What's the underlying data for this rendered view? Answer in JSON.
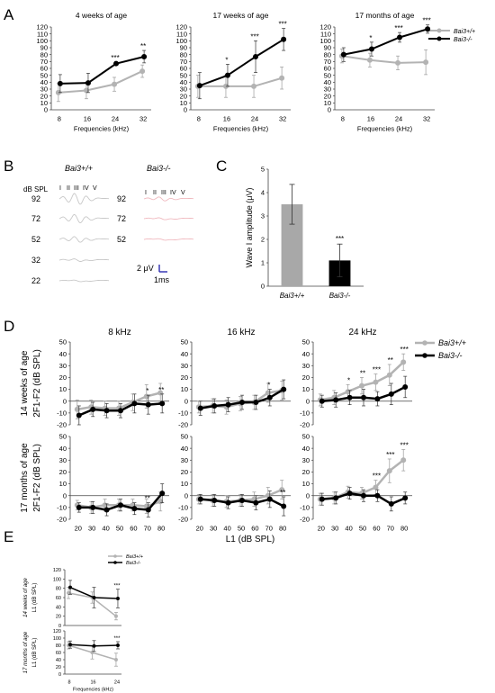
{
  "colors": {
    "wt": "#b3b3b3",
    "ko": "#000000",
    "wt_trace": "#c8c8c8",
    "ko_trace": "#f0b9bf",
    "scale": "#2b2bb0"
  },
  "chart_data": [
    {
      "id": "A1",
      "panel_letter": "A",
      "type": "line",
      "title": "4 weeks of age",
      "xlabel": "Frequencies (kHz)",
      "ylabel": "",
      "ylim": [
        0,
        120
      ],
      "yticks": [
        0,
        10,
        20,
        30,
        40,
        50,
        60,
        70,
        80,
        90,
        100,
        110,
        120
      ],
      "categories": [
        "8",
        "16",
        "24",
        "32"
      ],
      "series": [
        {
          "name": "Bai3+/+",
          "values": [
            25,
            28,
            37,
            56
          ],
          "err": [
            13,
            12,
            10,
            9
          ],
          "stars": [
            "",
            "",
            "",
            ""
          ]
        },
        {
          "name": "Bai3-/-",
          "values": [
            38,
            39,
            67,
            77
          ],
          "err": [
            13,
            14,
            2,
            9
          ],
          "stars": [
            "",
            "",
            "***",
            "**"
          ]
        }
      ]
    },
    {
      "id": "A2",
      "type": "line",
      "title": "17 weeks of age",
      "xlabel": "Frequencies (kHz)",
      "ylabel": "",
      "ylim": [
        0,
        120
      ],
      "yticks": [
        0,
        10,
        20,
        30,
        40,
        50,
        60,
        70,
        80,
        90,
        100,
        110,
        120
      ],
      "categories": [
        "8",
        "16",
        "24",
        "32"
      ],
      "series": [
        {
          "name": "Bai3+/+",
          "values": [
            34,
            34,
            34,
            46
          ],
          "err": [
            16,
            16,
            16,
            16
          ],
          "stars": [
            "",
            "",
            "",
            ""
          ]
        },
        {
          "name": "Bai3-/-",
          "values": [
            35,
            50,
            77,
            102
          ],
          "err": [
            19,
            16,
            23,
            16
          ],
          "stars": [
            "",
            "*",
            "***",
            "***"
          ]
        }
      ]
    },
    {
      "id": "A3",
      "type": "line",
      "title": "17 months of age",
      "xlabel": "Frequencies (kHz)",
      "ylabel": "",
      "ylim": [
        0,
        120
      ],
      "yticks": [
        0,
        10,
        20,
        30,
        40,
        50,
        60,
        70,
        80,
        90,
        100,
        110,
        120
      ],
      "categories": [
        "8",
        "16",
        "24",
        "32"
      ],
      "legend_pos": "top-right",
      "series": [
        {
          "name": "Bai3+/+",
          "values": [
            78,
            72,
            68,
            69
          ],
          "err": [
            10,
            10,
            10,
            18
          ],
          "stars": [
            "",
            "",
            "",
            ""
          ]
        },
        {
          "name": "Bai3-/-",
          "values": [
            80,
            88,
            105,
            117
          ],
          "err": [
            10,
            10,
            7,
            6
          ],
          "stars": [
            "",
            "*",
            "***",
            "***"
          ]
        }
      ]
    },
    {
      "id": "C",
      "panel_letter": "C",
      "type": "bar",
      "ylabel": "Wave I amplitude (μV)",
      "ylim": [
        0,
        5
      ],
      "yticks": [
        0,
        1,
        2,
        3,
        4,
        5
      ],
      "categories": [
        "Bai3+/+",
        "Bai3-/-"
      ],
      "values": [
        3.5,
        1.1
      ],
      "err": [
        0.85,
        0.7
      ],
      "stars": [
        "",
        "***"
      ]
    },
    {
      "id": "D1",
      "panel_letter": "D",
      "type": "line",
      "title": "8 kHz",
      "row_label": "14 weeks of age",
      "ylabel": "2F1-F2 (dB SPL)",
      "ylim": [
        -20,
        50
      ],
      "yticks": [
        -20,
        -10,
        0,
        10,
        20,
        30,
        40,
        50
      ],
      "x": [
        20,
        30,
        40,
        50,
        60,
        70,
        80
      ],
      "show_xticks": false,
      "series": [
        {
          "name": "Bai3+/+",
          "values": [
            -7,
            -5,
            -6,
            -6,
            -1,
            4,
            7
          ],
          "err": [
            8,
            6,
            6,
            6,
            7,
            10,
            8
          ],
          "stars": [
            "",
            "",
            "",
            "",
            "",
            "",
            ""
          ]
        },
        {
          "name": "Bai3-/-",
          "values": [
            -12,
            -7,
            -8,
            -8,
            -2,
            -3,
            -2
          ],
          "err": [
            8,
            6,
            6,
            6,
            8,
            8,
            8
          ],
          "stars": [
            "",
            "",
            "",
            "",
            "",
            "*",
            "**"
          ]
        }
      ]
    },
    {
      "id": "D2",
      "type": "line",
      "title": "16 kHz",
      "ylabel": "",
      "ylim": [
        -20,
        50
      ],
      "yticks": [
        -20,
        -10,
        0,
        10,
        20,
        30,
        40,
        50
      ],
      "x": [
        20,
        30,
        40,
        50,
        60,
        70,
        80
      ],
      "show_xticks": false,
      "series": [
        {
          "name": "Bai3+/+",
          "values": [
            -5,
            -4,
            -5,
            -2,
            -1,
            7,
            9
          ],
          "err": [
            5,
            6,
            6,
            6,
            6,
            8,
            8
          ],
          "stars": [
            "",
            "",
            "",
            "",
            "",
            "",
            ""
          ]
        },
        {
          "name": "Bai3-/-",
          "values": [
            -6,
            -4,
            -3,
            -1,
            -1,
            3,
            10
          ],
          "err": [
            6,
            6,
            6,
            6,
            6,
            7,
            8
          ],
          "stars": [
            "",
            "",
            "",
            "",
            "",
            "*",
            ""
          ]
        }
      ]
    },
    {
      "id": "D3",
      "type": "line",
      "title": "24 kHz",
      "ylabel": "",
      "ylim": [
        -20,
        50
      ],
      "yticks": [
        -20,
        -10,
        0,
        10,
        20,
        30,
        40,
        50
      ],
      "x": [
        20,
        30,
        40,
        50,
        60,
        70,
        80
      ],
      "show_xticks": false,
      "legend_pos": "top-right",
      "series": [
        {
          "name": "Bai3+/+",
          "values": [
            1,
            3,
            8,
            13,
            16,
            22,
            33
          ],
          "err": [
            5,
            6,
            6,
            7,
            7,
            9,
            7
          ],
          "stars": [
            "",
            "",
            "*",
            "**",
            "***",
            "**",
            "***"
          ]
        },
        {
          "name": "Bai3-/-",
          "values": [
            0,
            1,
            3,
            3,
            2,
            6,
            12
          ],
          "err": [
            5,
            6,
            6,
            7,
            6,
            9,
            9
          ],
          "stars": [
            "",
            "",
            "",
            "",
            "",
            "",
            ""
          ]
        }
      ]
    },
    {
      "id": "D4",
      "type": "line",
      "row_label": "17 months of age",
      "ylabel": "2F1-F2 (dB SPL)",
      "ylim": [
        -20,
        50
      ],
      "yticks": [
        -20,
        -10,
        0,
        10,
        20,
        30,
        40,
        50
      ],
      "x": [
        20,
        30,
        40,
        50,
        60,
        70,
        80
      ],
      "show_xticks": true,
      "series": [
        {
          "name": "Bai3+/+",
          "values": [
            -8,
            -10,
            -8,
            -8,
            -8,
            -9,
            -5
          ],
          "err": [
            4,
            5,
            5,
            5,
            5,
            6,
            8
          ],
          "stars": [
            "",
            "",
            "",
            "",
            "",
            "",
            ""
          ]
        },
        {
          "name": "Bai3-/-",
          "values": [
            -10,
            -10,
            -12,
            -8,
            -11,
            -12,
            2
          ],
          "err": [
            4,
            5,
            5,
            5,
            5,
            6,
            8
          ],
          "stars": [
            "",
            "",
            "",
            "",
            "",
            "**",
            ""
          ]
        }
      ]
    },
    {
      "id": "D5",
      "type": "line",
      "ylabel": "",
      "ylim": [
        -20,
        50
      ],
      "yticks": [
        -20,
        -10,
        0,
        10,
        20,
        30,
        40,
        50
      ],
      "x": [
        20,
        30,
        40,
        50,
        60,
        70,
        80
      ],
      "show_xticks": true,
      "series": [
        {
          "name": "Bai3+/+",
          "values": [
            -3,
            -4,
            -5,
            -4,
            -3,
            0,
            5
          ],
          "err": [
            4,
            5,
            5,
            5,
            6,
            7,
            8
          ],
          "stars": [
            "",
            "",
            "",
            "",
            "",
            "",
            ""
          ]
        },
        {
          "name": "Bai3-/-",
          "values": [
            -3,
            -4,
            -6,
            -4,
            -6,
            -3,
            -9
          ],
          "err": [
            4,
            5,
            5,
            5,
            6,
            7,
            8
          ],
          "stars": [
            "",
            "",
            "",
            "",
            "",
            "",
            "**"
          ]
        }
      ]
    },
    {
      "id": "D6",
      "type": "line",
      "ylabel": "",
      "ylim": [
        -20,
        50
      ],
      "yticks": [
        -20,
        -10,
        0,
        10,
        20,
        30,
        40,
        50
      ],
      "x": [
        20,
        30,
        40,
        50,
        60,
        70,
        80
      ],
      "show_xticks": true,
      "series": [
        {
          "name": "Bai3+/+",
          "values": [
            -3,
            -2,
            3,
            2,
            7,
            21,
            30
          ],
          "err": [
            5,
            5,
            5,
            5,
            6,
            10,
            9
          ],
          "stars": [
            "",
            "",
            "",
            "",
            "***",
            "***",
            "***"
          ]
        },
        {
          "name": "Bai3-/-",
          "values": [
            -3,
            -2,
            2,
            0,
            0,
            -7,
            -2
          ],
          "err": [
            5,
            5,
            5,
            5,
            5,
            6,
            5
          ],
          "stars": [
            "",
            "",
            "",
            "",
            "",
            "",
            ""
          ]
        }
      ]
    },
    {
      "id": "E1",
      "panel_letter": "E",
      "type": "line",
      "row_label": "14 weeks of age",
      "ylabel": "L1 (dB SPL)",
      "ylim": [
        0,
        120
      ],
      "yticks": [
        0,
        20,
        40,
        60,
        80,
        100,
        120
      ],
      "categories": [
        "8",
        "16",
        "24"
      ],
      "show_xticks": false,
      "legend_pos": "top-right",
      "series": [
        {
          "name": "Bai3+/+",
          "values": [
            70,
            60,
            20
          ],
          "err": [
            12,
            12,
            8
          ],
          "stars": [
            "",
            "",
            ""
          ]
        },
        {
          "name": "Bai3-/-",
          "values": [
            82,
            60,
            58
          ],
          "err": [
            15,
            22,
            20
          ],
          "stars": [
            "",
            "",
            "***"
          ]
        }
      ]
    },
    {
      "id": "E2",
      "type": "line",
      "row_label": "17 months of age",
      "ylabel": "L1 (dB SPL)",
      "ylim": [
        0,
        120
      ],
      "yticks": [
        0,
        20,
        40,
        60,
        80,
        100,
        120
      ],
      "categories": [
        "8",
        "16",
        "24"
      ],
      "show_xticks": true,
      "xlabel": "Frequencies (kHz)",
      "series": [
        {
          "name": "Bai3+/+",
          "values": [
            80,
            60,
            40
          ],
          "err": [
            10,
            18,
            18
          ],
          "stars": [
            "",
            "",
            ""
          ]
        },
        {
          "name": "Bai3-/-",
          "values": [
            82,
            78,
            80
          ],
          "err": [
            10,
            15,
            10
          ],
          "stars": [
            "",
            "",
            "***"
          ]
        }
      ]
    }
  ],
  "legend": {
    "wt": "Bai3+/+",
    "ko": "Bai3-/-"
  },
  "panel_B": {
    "letter": "B",
    "wt_genotype": "Bai3+/+",
    "ko_genotype": "Bai3-/-",
    "unit": "dB SPL",
    "wt_levels": [
      "92",
      "72",
      "52",
      "32",
      "22"
    ],
    "ko_levels": [
      "92",
      "72",
      "52"
    ],
    "wave_labels": [
      "I",
      "II",
      "III",
      "IV",
      "V"
    ],
    "scale_v": "2 μV",
    "scale_t": "1ms"
  },
  "panel_D_xlabel": "L1 (dB SPL)"
}
